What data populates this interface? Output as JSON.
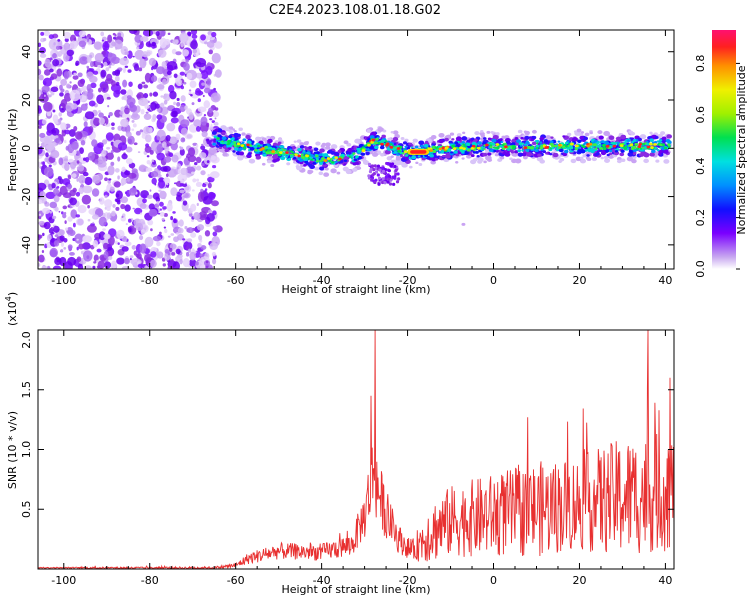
{
  "title": "C2E4.2023.108.01.18.G02",
  "chart_data": [
    {
      "type": "heatmap",
      "title": "C2E4.2023.108.01.18.G02",
      "xlabel": "Height of straight line (km)",
      "ylabel": "Frequency (Hz)",
      "xlim": [
        -106,
        42
      ],
      "ylim": [
        -50,
        49
      ],
      "xticks": [
        "-100",
        "-80",
        "-60",
        "-40",
        "-20",
        "0",
        "20",
        "40"
      ],
      "yticks": [
        "40",
        "20",
        "0",
        "-20",
        "-40"
      ],
      "noise_region_x": [
        -106,
        -65
      ],
      "ridge": {
        "x": [
          -65,
          -55,
          -45,
          -38,
          -32,
          -28,
          -25,
          -20,
          -10,
          0,
          10,
          20,
          30,
          41
        ],
        "y": [
          4,
          0,
          -3,
          -5,
          -3,
          3,
          2,
          -2,
          0,
          1,
          1,
          1,
          1,
          1
        ],
        "peak_x": [
          -20,
          -15
        ]
      },
      "colorbar": {
        "label": "Normalized spectral amplitude",
        "ticks": [
          "0.0",
          "0.2",
          "0.4",
          "0.6",
          "0.8"
        ],
        "range": [
          0,
          0.93
        ]
      },
      "grid": false
    },
    {
      "type": "line",
      "xlabel": "Height of straight line (km)",
      "ylabel": "SNR (10 * v/v)",
      "scale_note_base": "(x10",
      "scale_note_exp": "4",
      "scale_note_end": ")",
      "xlim": [
        -106,
        42
      ],
      "ylim": [
        0,
        2.0
      ],
      "xticks": [
        "-100",
        "-80",
        "-60",
        "-40",
        "-20",
        "0",
        "20",
        "40"
      ],
      "yticks": [
        "2.0",
        "1.5",
        "1.0",
        "0.5"
      ],
      "envelope": {
        "x": [
          -106,
          -65,
          -60,
          -57,
          -50,
          -40,
          -33,
          -30,
          -28,
          -25,
          -22,
          -19,
          -15,
          -10,
          0,
          10,
          20,
          30,
          41
        ],
        "base": [
          0.01,
          0.01,
          0.03,
          0.09,
          0.15,
          0.14,
          0.2,
          0.45,
          0.8,
          0.45,
          0.25,
          0.15,
          0.3,
          0.4,
          0.45,
          0.5,
          0.55,
          0.6,
          0.65
        ],
        "amp": [
          0.005,
          0.01,
          0.02,
          0.05,
          0.07,
          0.07,
          0.1,
          0.2,
          0.35,
          0.2,
          0.12,
          0.08,
          0.25,
          0.3,
          0.35,
          0.4,
          0.4,
          0.5,
          0.5
        ]
      },
      "spikes": [
        {
          "x": -27.5,
          "y": 2.0
        },
        {
          "x": -28.5,
          "y": 1.45
        },
        {
          "x": 36.0,
          "y": 2.0
        },
        {
          "x": 41.0,
          "y": 1.6
        }
      ],
      "color": "#e83030",
      "grid": false
    }
  ]
}
